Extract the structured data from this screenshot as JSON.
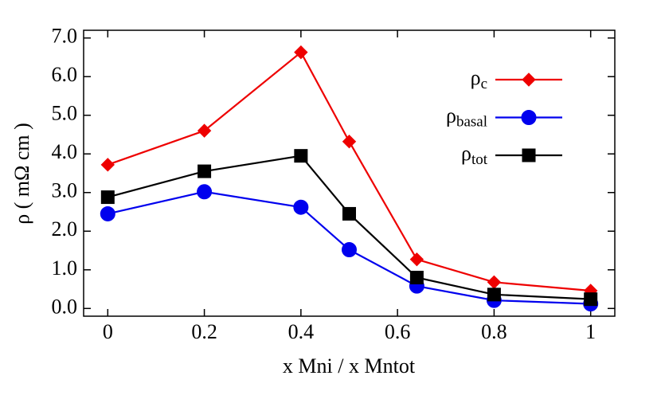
{
  "chart_data": {
    "type": "line",
    "x_label": "x Mni / x Mntot",
    "y_label": "ρ ( mΩ cm )",
    "x": [
      0,
      0.2,
      0.4,
      0.5,
      0.64,
      0.8,
      1
    ],
    "series": [
      {
        "name": "ρc",
        "color": "#ee0000",
        "marker": "diamond",
        "values": [
          3.72,
          4.6,
          6.63,
          4.32,
          1.27,
          0.68,
          0.46
        ]
      },
      {
        "name": "ρbasal",
        "color": "#0000ee",
        "marker": "circle",
        "values": [
          2.45,
          3.02,
          2.62,
          1.52,
          0.58,
          0.21,
          0.12
        ]
      },
      {
        "name": "ρtot",
        "color": "#000000",
        "marker": "square",
        "values": [
          2.88,
          3.55,
          3.95,
          2.45,
          0.8,
          0.36,
          0.24
        ]
      }
    ],
    "xlim": [
      -0.05,
      1.05
    ],
    "ylim": [
      -0.2,
      7.2
    ],
    "xticks": [
      0,
      0.2,
      0.4,
      0.6,
      0.8,
      1
    ],
    "yticks": [
      {
        "value": 0,
        "label": "0.0"
      },
      {
        "value": 1,
        "label": "1.0"
      },
      {
        "value": 2,
        "label": "2.0"
      },
      {
        "value": 3,
        "label": "3.0"
      },
      {
        "value": 4,
        "label": "4.0"
      },
      {
        "value": 5,
        "label": "5.0"
      },
      {
        "value": 6,
        "label": "6.0"
      },
      {
        "value": 7,
        "label": "7.0"
      }
    ],
    "legend": "upper right"
  }
}
